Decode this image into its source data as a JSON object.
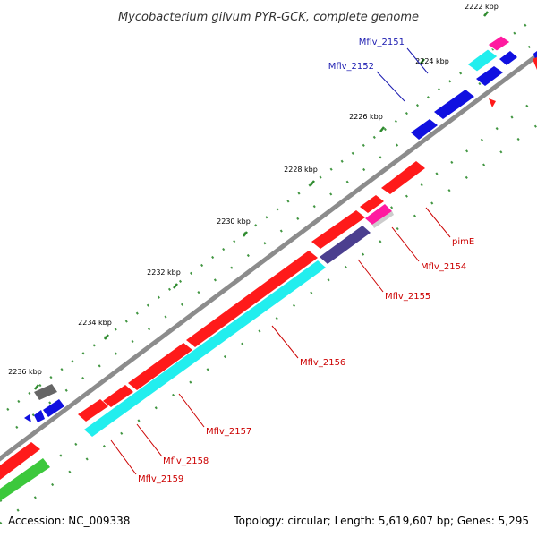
{
  "title": "Mycobacterium gilvum PYR-GCK, complete genome",
  "footer": {
    "accession": "Accession: NC_009338",
    "stats": "Topology: circular; Length: 5,619,607 bp; Genes: 5,295"
  },
  "ticks": [
    "2222 kbp",
    "2224 kbp",
    "2226 kbp",
    "2228 kbp",
    "2230 kbp",
    "2232 kbp",
    "2234 kbp",
    "2236 kbp"
  ],
  "labels": {
    "forward": [
      "Mflv_2151",
      "Mflv_2152"
    ],
    "reverse": [
      "pimE",
      "Mflv_2154",
      "Mflv_2155",
      "Mflv_2156",
      "Mflv_2157",
      "Mflv_2158",
      "Mflv_2159"
    ]
  },
  "colors": {
    "backbone": "#8c8c8c",
    "tick": "#2e8b2e",
    "red": "#ff1a1a",
    "blue": "#1010e0",
    "cyan": "#22eeee",
    "pink": "#ff1aa0",
    "purple": "#4b3f8f",
    "gray": "#666666",
    "green": "#3cc83c",
    "label_forward": "#1a1ab0",
    "label_reverse": "#cc0000"
  }
}
